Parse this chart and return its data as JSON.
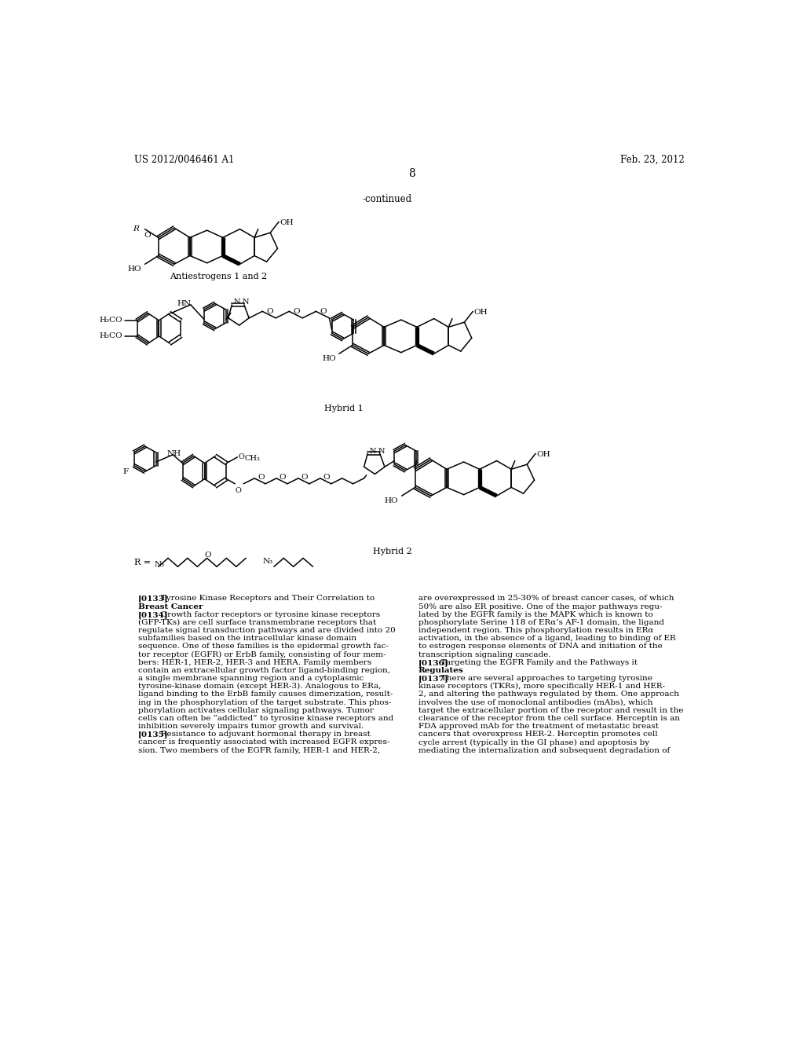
{
  "background_color": "#ffffff",
  "header_left": "US 2012/0046461 A1",
  "header_right": "Feb. 23, 2012",
  "page_number": "8",
  "continued_label": "-continued",
  "label_antiestrogens": "Antiestrogens 1 and 2",
  "label_hybrid1": "Hybrid 1",
  "label_hybrid2": "Hybrid 2",
  "text_col1_lines": [
    "[0133]   Tyrosine Kinase Receptors and Their Correlation to",
    "Breast Cancer",
    "[0134]   Growth factor receptors or tyrosine kinase receptors",
    "(GFP-TKs) are cell surface transmembrane receptors that",
    "regulate signal transduction pathways and are divided into 20",
    "subfamilies based on the intracellular kinase domain",
    "sequence. One of these families is the epidermal growth fac-",
    "tor receptor (EGFR) or ErbB family, consisting of four mem-",
    "bers: HER-1, HER-2, HER-3 and HERA. Family members",
    "contain an extracellular growth factor ligand-binding region,",
    "a single membrane spanning region and a cytoplasmic",
    "tyrosine-kinase domain (except HER-3). Analogous to ERa,",
    "ligand binding to the ErbB family causes dimerization, result-",
    "ing in the phosphorylation of the target substrate. This phos-",
    "phorylation activates cellular signaling pathways. Tumor",
    "cells can often be “addicted” to tyrosine kinase receptors and",
    "inhibition severely impairs tumor growth and survival.",
    "[0135]   Resistance to adjuvant hormonal therapy in breast",
    "cancer is frequently associated with increased EGFR expres-",
    "sion. Two members of the EGFR family, HER-1 and HER-2,"
  ],
  "text_col1_bold": [
    0,
    1,
    17
  ],
  "text_col2_lines": [
    "are overexpressed in 25-30% of breast cancer cases, of which",
    "50% are also ER positive. One of the major pathways regu-",
    "lated by the EGFR family is the MAPK which is known to",
    "phosphorylate Serine 118 of ERα’s AF-1 domain, the ligand",
    "independent region. This phosphorylation results in ERα",
    "activation, in the absence of a ligand, leading to binding of ER",
    "to estrogen response elements of DNA and initiation of the",
    "transcription signaling cascade.",
    "[0136]   Targeting the EGFR Family and the Pathways it",
    "Regulates",
    "[0137]   There are several approaches to targeting tyrosine",
    "kinase receptors (TKRs), more specifically HER-1 and HER-",
    "2, and altering the pathways regulated by them. One approach",
    "involves the use of monoclonal antibodies (mAbs), which",
    "target the extracellular portion of the receptor and result in the",
    "clearance of the receptor from the cell surface. Herceptin is an",
    "FDA approved mAb for the treatment of metastatic breast",
    "cancers that overexpress HER-2. Herceptin promotes cell",
    "cycle arrest (typically in the GI phase) and apoptosis by",
    "mediating the internalization and subsequent degradation of"
  ],
  "text_col2_bold": [
    8,
    9,
    10
  ]
}
